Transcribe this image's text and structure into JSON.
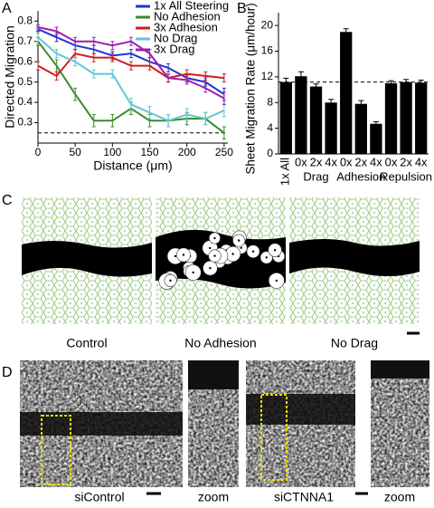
{
  "chart_data": [
    {
      "type": "line",
      "panel_label": "A",
      "y_label": "Directed Migration",
      "x_label": "Distance (μm)",
      "x": [
        0,
        25,
        50,
        75,
        100,
        125,
        150,
        175,
        200,
        225,
        250
      ],
      "xlim": [
        0,
        255
      ],
      "xticks": [
        0,
        50,
        100,
        150,
        200,
        250
      ],
      "ylim": [
        0.2,
        0.85
      ],
      "yticks": [
        0.3,
        0.4,
        0.5,
        0.6,
        0.7,
        0.8
      ],
      "reference_line": 0.25,
      "legend": "upper right",
      "series": [
        {
          "name": "1x All Steering",
          "color": "#2233d6",
          "values": [
            0.76,
            0.72,
            0.68,
            0.66,
            0.63,
            0.64,
            0.6,
            0.57,
            0.52,
            0.5,
            0.44
          ],
          "errors": [
            0.01,
            0.02,
            0.02,
            0.02,
            0.02,
            0.02,
            0.02,
            0.02,
            0.02,
            0.02,
            0.03
          ]
        },
        {
          "name": "No Adhesion",
          "color": "#3d8a2b",
          "values": [
            0.7,
            0.58,
            0.44,
            0.31,
            0.31,
            0.37,
            0.31,
            0.31,
            0.32,
            0.32,
            0.25
          ],
          "errors": [
            0.02,
            0.03,
            0.03,
            0.03,
            0.03,
            0.03,
            0.03,
            0.03,
            0.03,
            0.03,
            0.03
          ]
        },
        {
          "name": "3x Adhesion",
          "color": "#d01c1c",
          "values": [
            0.58,
            0.53,
            0.64,
            0.62,
            0.62,
            0.58,
            0.58,
            0.52,
            0.54,
            0.53,
            0.52
          ],
          "errors": [
            0.02,
            0.02,
            0.02,
            0.02,
            0.02,
            0.02,
            0.02,
            0.02,
            0.02,
            0.02,
            0.02
          ]
        },
        {
          "name": "No Drag",
          "color": "#62c6d6",
          "values": [
            0.72,
            0.64,
            0.6,
            0.54,
            0.54,
            0.39,
            0.35,
            0.31,
            0.34,
            0.32,
            0.36
          ],
          "errors": [
            0.02,
            0.02,
            0.02,
            0.02,
            0.02,
            0.03,
            0.03,
            0.03,
            0.03,
            0.03,
            0.03
          ]
        },
        {
          "name": "3x Drag",
          "color": "#9b1fae",
          "values": [
            0.77,
            0.75,
            0.7,
            0.7,
            0.68,
            0.7,
            0.64,
            0.52,
            0.51,
            0.47,
            0.42
          ],
          "errors": [
            0.01,
            0.02,
            0.02,
            0.02,
            0.02,
            0.02,
            0.02,
            0.02,
            0.02,
            0.02,
            0.03
          ]
        }
      ]
    },
    {
      "type": "bar",
      "panel_label": "B",
      "y_label": "Sheet Migration Rate (μm/hour)",
      "categories": [
        "1x All",
        "0x",
        "2x",
        "4x",
        "0x",
        "2x",
        "4x",
        "0x",
        "2x",
        "4x"
      ],
      "groups": [
        {
          "label": "Drag",
          "categories": [
            1,
            2,
            3
          ]
        },
        {
          "label": "Adhesion",
          "categories": [
            4,
            5,
            6
          ]
        },
        {
          "label": "Repulsion",
          "categories": [
            7,
            8,
            9
          ]
        }
      ],
      "values": [
        11.2,
        12.1,
        10.5,
        8.0,
        19.0,
        7.8,
        4.7,
        11.0,
        11.2,
        11.1
      ],
      "errors": [
        0.6,
        0.7,
        0.4,
        0.5,
        0.5,
        0.5,
        0.3,
        0.4,
        0.4,
        0.4
      ],
      "color": "#000000",
      "ylim": [
        0,
        22
      ],
      "yticks": [
        0,
        4,
        8,
        12,
        16,
        20
      ],
      "reference_line": 11.2
    }
  ],
  "panels": {
    "C": {
      "label": "C",
      "images": [
        {
          "caption": "Control"
        },
        {
          "caption": "No Adhesion"
        },
        {
          "caption": "No Drag"
        }
      ]
    },
    "D": {
      "label": "D",
      "images": [
        {
          "caption": "siControl",
          "zoom_caption": "zoom"
        },
        {
          "caption": "siCTNNA1",
          "zoom_caption": "zoom"
        }
      ]
    }
  }
}
